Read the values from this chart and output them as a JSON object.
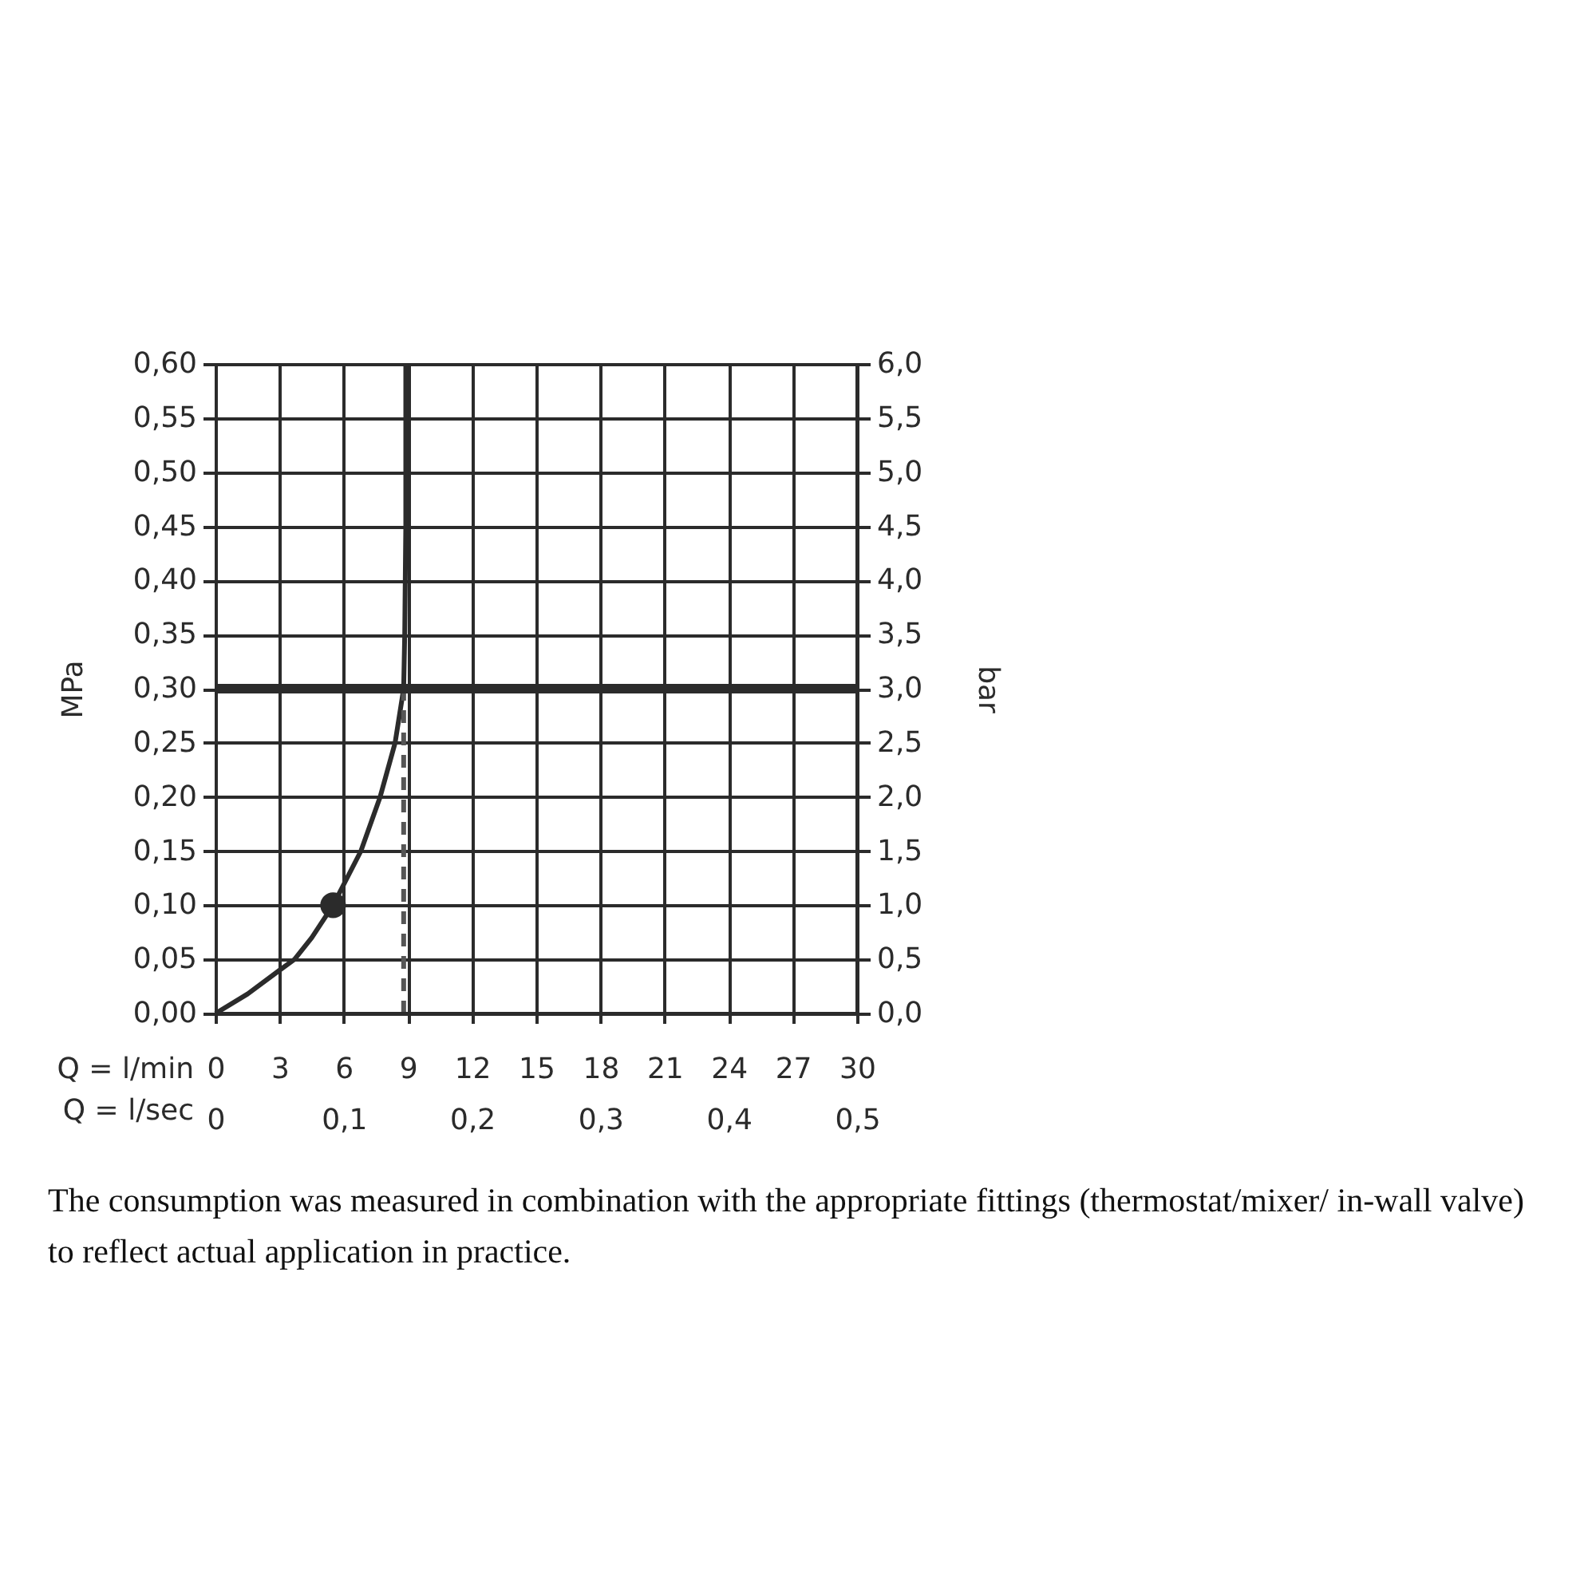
{
  "chart_data": {
    "type": "line",
    "xlabel": "Q = l/min",
    "x2label": "Q = l/sec",
    "ylabel": "MPa",
    "y2label": "bar",
    "xlim": [
      0,
      30
    ],
    "xticks": [
      0,
      3,
      6,
      9,
      12,
      15,
      18,
      21,
      24,
      27,
      30
    ],
    "x2lim": [
      0,
      0.5
    ],
    "x2ticks": [
      0,
      {
        "value": 0.1,
        "label": "0,1"
      },
      {
        "value": 0.2,
        "label": "0,2"
      },
      {
        "value": 0.3,
        "label": "0,3"
      },
      {
        "value": 0.4,
        "label": "0,4"
      },
      {
        "value": 0.5,
        "label": "0,5"
      }
    ],
    "ylim": [
      0,
      0.6
    ],
    "yticks": [
      {
        "value": 0,
        "label": "0,00"
      },
      {
        "value": 0.05,
        "label": "0,05"
      },
      {
        "value": 0.1,
        "label": "0,10"
      },
      {
        "value": 0.15,
        "label": "0,15"
      },
      {
        "value": 0.2,
        "label": "0,20"
      },
      {
        "value": 0.25,
        "label": "0,25"
      },
      {
        "value": 0.3,
        "label": "0,30"
      },
      {
        "value": 0.35,
        "label": "0,35"
      },
      {
        "value": 0.4,
        "label": "0,40"
      },
      {
        "value": 0.45,
        "label": "0,45"
      },
      {
        "value": 0.5,
        "label": "0,50"
      },
      {
        "value": 0.55,
        "label": "0,55"
      },
      {
        "value": 0.6,
        "label": "0,60"
      }
    ],
    "y2lim": [
      0,
      6
    ],
    "y2ticks": [
      {
        "value": 0,
        "label": "0,0"
      },
      {
        "value": 0.5,
        "label": "0,5"
      },
      {
        "value": 1,
        "label": "1,0"
      },
      {
        "value": 1.5,
        "label": "1,5"
      },
      {
        "value": 2,
        "label": "2,0"
      },
      {
        "value": 2.5,
        "label": "2,5"
      },
      {
        "value": 3,
        "label": "3,0"
      },
      {
        "value": 3.5,
        "label": "3,5"
      },
      {
        "value": 4,
        "label": "4,0"
      },
      {
        "value": 4.5,
        "label": "4,5"
      },
      {
        "value": 5,
        "label": "5,0"
      },
      {
        "value": 5.5,
        "label": "5,5"
      },
      {
        "value": 6,
        "label": "6,0"
      }
    ],
    "grid": true,
    "series": [
      {
        "type": "line",
        "color": "#2b2b2b",
        "line_style": "solid",
        "x": [
          0,
          1.5,
          3,
          3.7,
          4.5,
          5.5,
          6.8,
          7.7,
          8.4,
          8.8,
          8.85,
          8.9,
          8.9
        ],
        "values": [
          0,
          0.018,
          0.04,
          0.05,
          0.07,
          0.1,
          0.15,
          0.2,
          0.25,
          0.3,
          0.35,
          0.45,
          0.6
        ]
      },
      {
        "type": "scatter",
        "color": "#2b2b2b",
        "marker": "circle",
        "x": [
          5.5
        ],
        "values": [
          0.1
        ]
      },
      {
        "type": "line",
        "color": "#555555",
        "line_style": "dashed",
        "x": [
          8.8,
          8.8
        ],
        "values": [
          0,
          0.3
        ]
      }
    ],
    "ref_lines": [
      {
        "axis": "y",
        "value": 0.3,
        "color": "#2b2b2b"
      }
    ],
    "annotations": [
      "The consumption was measured in combination with the appropriate fittings (thermostat/mixer/ in-wall valve) to reflect actual application in practice."
    ]
  }
}
